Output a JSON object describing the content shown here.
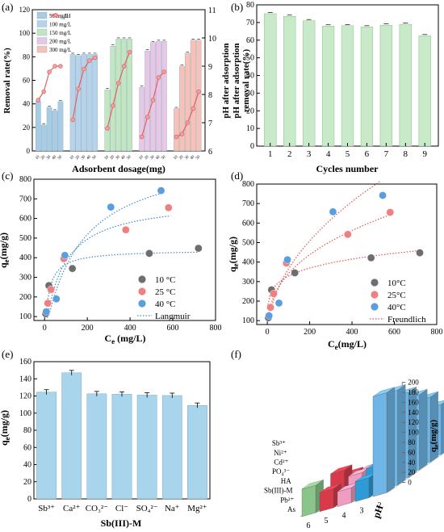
{
  "panels": {
    "a": {
      "label": "(a)",
      "ylabel": "Removal rate(%)",
      "y2label": "pH after adsorption",
      "xlabel": "Adsorbent dosage(mg)",
      "ylim": [
        0,
        120
      ],
      "yticks": [
        "0",
        "20",
        "40",
        "60",
        "80",
        "100",
        "120"
      ],
      "y2lim": [
        6,
        11
      ],
      "y2ticks": [
        "6",
        "7",
        "8",
        "9",
        "10",
        "11"
      ],
      "dose_labels": [
        "10",
        "20",
        "30",
        "40",
        "50"
      ],
      "legend": [
        "50 mg/L",
        "100 mg/L",
        "150 mg/L",
        "200 mg/L",
        "300 mg/L",
        "pH"
      ],
      "colors": [
        "#a8cce4",
        "#b7d3ea",
        "#c2e6c2",
        "#e6c8e6",
        "#f6c2b8"
      ],
      "line_color": "#e06060",
      "groups": [
        {
          "values": [
            42,
            22,
            37,
            34,
            42
          ],
          "ph": [
            7.8,
            8.1,
            8.8,
            9.0,
            9.0
          ]
        },
        {
          "values": [
            82,
            81,
            82,
            82,
            82
          ],
          "ph": [
            7.1,
            8.2,
            8.9,
            9.2,
            9.3
          ]
        },
        {
          "values": [
            52,
            89,
            95,
            95,
            95
          ],
          "ph": [
            6.8,
            7.6,
            8.4,
            9.0,
            9.5
          ]
        },
        {
          "values": [
            54,
            85,
            92,
            93,
            93
          ],
          "ph": [
            6.5,
            7.2,
            7.8,
            8.6,
            8.8
          ]
        },
        {
          "values": [
            36,
            72,
            83,
            94,
            94
          ],
          "ph": [
            6.5,
            6.6,
            7.0,
            7.5,
            8.1
          ]
        }
      ]
    },
    "b": {
      "label": "(b)",
      "ylabel": "removal rate(%)",
      "xlabel": "Cycles number",
      "ylim": [
        0,
        80
      ],
      "yticks": [
        "0",
        "10",
        "20",
        "30",
        "40",
        "50",
        "60",
        "70",
        "80"
      ],
      "categories": [
        "1",
        "2",
        "3",
        "4",
        "5",
        "6",
        "7",
        "8",
        "9"
      ],
      "values": [
        75,
        73.5,
        71,
        68,
        68.2,
        67.5,
        68.5,
        69,
        62.5
      ],
      "color": "#c8eac8"
    },
    "c": {
      "label": "(c)",
      "ylabel_q": "q",
      "ylabel_sub": "e",
      "ylabel_unit": "(mg/g)",
      "xlabel_c": "C",
      "xlabel_sub": "e",
      "xlabel_unit": " (mg/L)",
      "xlim": [
        -50,
        800
      ],
      "ylim": [
        80,
        800
      ],
      "xticks": [
        "0",
        "200",
        "400",
        "600",
        "800"
      ],
      "yticks": [
        "100",
        "200",
        "300",
        "400",
        "500",
        "600",
        "700",
        "800"
      ],
      "legend": [
        "10 °C",
        "25 °C",
        "40 °C",
        "Langmuir"
      ],
      "series": [
        {
          "color": "#6e6e6e",
          "points": [
            [
              5,
              115
            ],
            [
              20,
              258
            ],
            [
              130,
              345
            ],
            [
              490,
              422
            ],
            [
              720,
              448
            ]
          ]
        },
        {
          "color": "#f08080",
          "points": [
            [
              15,
              168
            ],
            [
              30,
              238
            ],
            [
              90,
              395
            ],
            [
              380,
              542
            ],
            [
              580,
              655
            ]
          ]
        },
        {
          "color": "#5a9ee0",
          "points": [
            [
              8,
              125
            ],
            [
              55,
              190
            ],
            [
              95,
              412
            ],
            [
              310,
              658
            ],
            [
              545,
              742
            ]
          ]
        }
      ]
    },
    "d": {
      "label": "(d)",
      "ylabel_q": "q",
      "ylabel_sub": "e",
      "ylabel_unit": "(mg/g)",
      "xlabel_c": "C",
      "xlabel_sub": "e",
      "xlabel_unit": "(mg/L)",
      "xlim": [
        -50,
        800
      ],
      "ylim": [
        80,
        800
      ],
      "xticks": [
        "0",
        "200",
        "400",
        "600",
        "800"
      ],
      "yticks": [
        "100",
        "200",
        "300",
        "400",
        "500",
        "600",
        "700",
        "800"
      ],
      "legend": [
        "10°C",
        "25°C",
        "40°C",
        "Freundlich"
      ],
      "series": [
        {
          "color": "#6e6e6e",
          "points": [
            [
              5,
              115
            ],
            [
              20,
              258
            ],
            [
              130,
              345
            ],
            [
              490,
              422
            ],
            [
              720,
              448
            ]
          ]
        },
        {
          "color": "#f08080",
          "points": [
            [
              15,
              168
            ],
            [
              30,
              238
            ],
            [
              90,
              395
            ],
            [
              380,
              542
            ],
            [
              580,
              655
            ]
          ]
        },
        {
          "color": "#5a9ee0",
          "points": [
            [
              8,
              125
            ],
            [
              55,
              190
            ],
            [
              95,
              412
            ],
            [
              310,
              658
            ],
            [
              545,
              742
            ]
          ]
        }
      ]
    },
    "e": {
      "label": "(e)",
      "ylabel_q": "q",
      "ylabel_sub": "e",
      "ylabel_unit": "(mg/g)",
      "xlabel": "Sb(III)-M",
      "ylim": [
        0,
        160
      ],
      "yticks": [
        "0",
        "20",
        "40",
        "60",
        "80",
        "100",
        "120",
        "140",
        "160"
      ],
      "categories": [
        "Sb³⁺",
        "Ca²⁺",
        "CO₃²⁻",
        "Cl⁻",
        "SO₄²⁻",
        "Na⁺",
        "Mg²⁺"
      ],
      "values": [
        124.5,
        147,
        122.5,
        122,
        121,
        120.5,
        109
      ],
      "color": "#a8d4ec"
    },
    "f": {
      "label": "(f)",
      "zlabel_q": "q",
      "zlabel_sub": "e",
      "zlabel_unit": "(mg/g)",
      "zticks": [
        "0",
        "20",
        "40",
        "60",
        "80",
        "100",
        "120",
        "140",
        "160",
        "180",
        "200"
      ],
      "zlim": [
        0,
        200
      ],
      "ph_axis_label": "pH",
      "ph_labels": [
        "6",
        "5",
        "4",
        "3",
        "2"
      ],
      "row_labels": [
        "As",
        "Pb²⁺",
        "Sb(III)-M",
        "HA",
        "PO₄³⁻",
        "Cd²⁺",
        "Ni²⁺",
        "Sb³⁺"
      ],
      "rows": [
        {
          "color": "#8bc48a",
          "values": [
            55,
            22,
            10,
            6,
            4,
            3,
            3,
            3
          ]
        },
        {
          "color": "#d83a4a",
          "values": [
            38,
            60,
            40,
            25,
            20,
            12,
            6,
            5
          ]
        },
        {
          "color": "#ee9cc0",
          "values": [
            30,
            45,
            40,
            30,
            25,
            20,
            15,
            10
          ]
        },
        {
          "color": "#2e9ad6",
          "values": [
            40,
            50,
            60,
            55,
            45,
            40,
            35,
            30
          ]
        },
        {
          "color": "#6fb6e6",
          "values": [
            200,
            190,
            170,
            150,
            130,
            100,
            80,
            60
          ]
        }
      ]
    }
  }
}
